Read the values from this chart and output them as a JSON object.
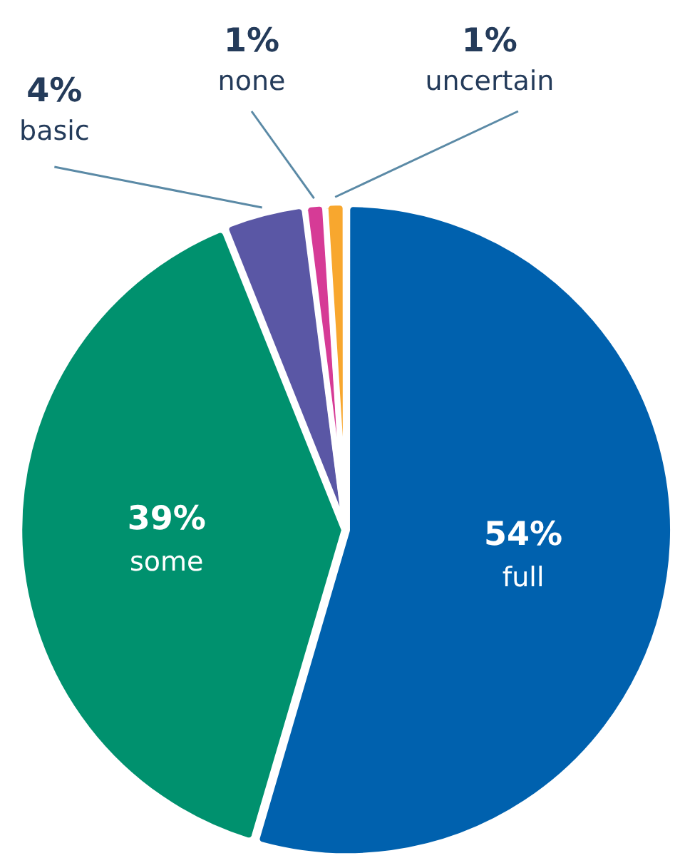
{
  "chart_data": {
    "type": "pie",
    "categories": [
      "full",
      "some",
      "basic",
      "none",
      "uncertain"
    ],
    "values": [
      54,
      39,
      4,
      1,
      1
    ],
    "value_labels": [
      "54%",
      "39%",
      "4%",
      "1%",
      "1%"
    ],
    "colors": [
      "#0061ae",
      "#00916e",
      "#5a57a5",
      "#d63b96",
      "#f8a72e"
    ],
    "legend": false
  }
}
